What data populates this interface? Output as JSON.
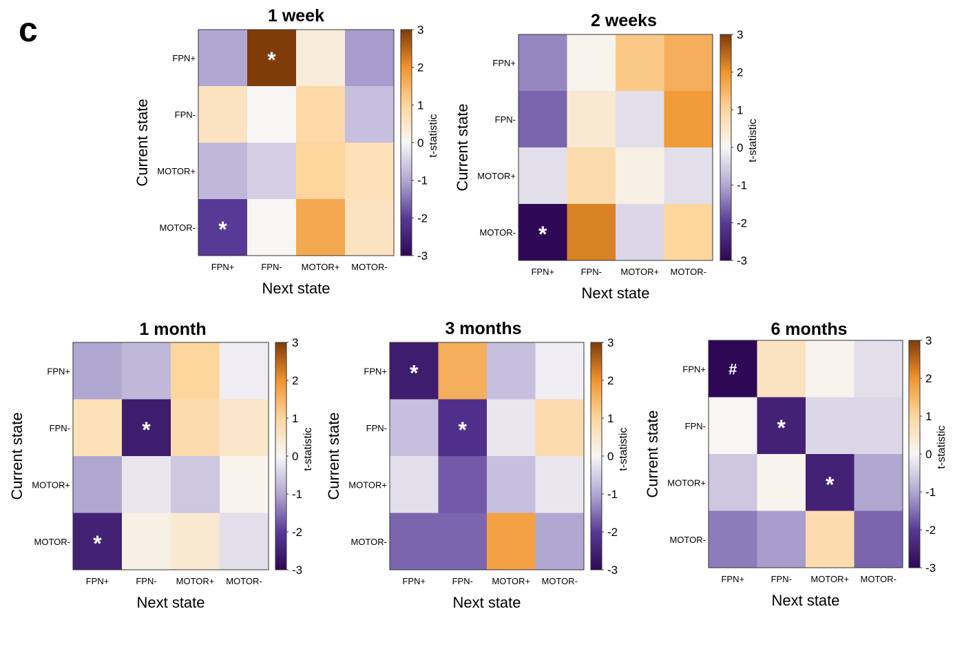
{
  "panel_letter": "c",
  "chart_data": [
    {
      "type": "heatmap",
      "title": "1 week",
      "xlabel": "Next state",
      "ylabel": "Current state",
      "colorbar_label": "t-statistic",
      "colorbar_ticks": [
        "3",
        "2",
        "1",
        "0",
        "-1",
        "-2",
        "-3"
      ],
      "clim": [
        -3,
        3
      ],
      "x_categories": [
        "FPN+",
        "FPN-",
        "MOTOR+",
        "MOTOR-"
      ],
      "y_categories": [
        "FPN+",
        "FPN-",
        "MOTOR+",
        "MOTOR-"
      ],
      "values": [
        [
          -1.0,
          3.0,
          0.3,
          -1.1
        ],
        [
          0.6,
          0.0,
          0.9,
          -0.7
        ],
        [
          -0.8,
          -0.5,
          1.0,
          0.7
        ],
        [
          -2.0,
          0.0,
          1.7,
          0.6
        ]
      ],
      "annotations": [
        [
          "",
          "*",
          "",
          ""
        ],
        [
          "",
          "",
          "",
          ""
        ],
        [
          "",
          "",
          "",
          ""
        ],
        [
          "*",
          "",
          "",
          ""
        ]
      ]
    },
    {
      "type": "heatmap",
      "title": "2 weeks",
      "xlabel": "Next state",
      "ylabel": "Current state",
      "colorbar_label": "t-statistic",
      "colorbar_ticks": [
        "3",
        "2",
        "1",
        "0",
        "-1",
        "-2",
        "-3"
      ],
      "clim": [
        -3,
        3
      ],
      "x_categories": [
        "FPN+",
        "FPN-",
        "MOTOR+",
        "MOTOR-"
      ],
      "y_categories": [
        "FPN+",
        "FPN-",
        "MOTOR+",
        "MOTOR-"
      ],
      "values": [
        [
          -1.3,
          0.1,
          1.2,
          1.6
        ],
        [
          -1.6,
          0.4,
          -0.3,
          1.9
        ],
        [
          -0.3,
          0.8,
          0.2,
          -0.3
        ],
        [
          -3.0,
          2.2,
          -0.4,
          1.0
        ]
      ],
      "annotations": [
        [
          "",
          "",
          "",
          ""
        ],
        [
          "",
          "",
          "",
          ""
        ],
        [
          "",
          "",
          "",
          ""
        ],
        [
          "*",
          "",
          "",
          ""
        ]
      ]
    },
    {
      "type": "heatmap",
      "title": "1 month",
      "xlabel": "Next state",
      "ylabel": "Current state",
      "colorbar_label": "t-statistic",
      "colorbar_ticks": [
        "3",
        "2",
        "1",
        "0",
        "-1",
        "-2",
        "-3"
      ],
      "clim": [
        -3,
        3
      ],
      "x_categories": [
        "FPN+",
        "FPN-",
        "MOTOR+",
        "MOTOR-"
      ],
      "y_categories": [
        "FPN+",
        "FPN-",
        "MOTOR+",
        "MOTOR-"
      ],
      "values": [
        [
          -1.0,
          -0.8,
          1.0,
          -0.1
        ],
        [
          0.7,
          -2.6,
          0.8,
          0.5
        ],
        [
          -1.0,
          -0.2,
          -0.6,
          0.1
        ],
        [
          -2.5,
          0.2,
          0.4,
          -0.3
        ]
      ],
      "annotations": [
        [
          "",
          "",
          "",
          ""
        ],
        [
          "",
          "*",
          "",
          ""
        ],
        [
          "",
          "",
          "",
          ""
        ],
        [
          "*",
          "",
          "",
          ""
        ]
      ]
    },
    {
      "type": "heatmap",
      "title": "3 months",
      "xlabel": "Next state",
      "ylabel": "Current state",
      "colorbar_label": "t-statistic",
      "colorbar_ticks": [
        "3",
        "2",
        "1",
        "0",
        "-1",
        "-2",
        "-3"
      ],
      "clim": [
        -3,
        3
      ],
      "x_categories": [
        "FPN+",
        "FPN-",
        "MOTOR+",
        "MOTOR-"
      ],
      "y_categories": [
        "FPN+",
        "FPN-",
        "MOTOR+",
        "MOTOR-"
      ],
      "values": [
        [
          -2.6,
          1.6,
          -0.7,
          -0.1
        ],
        [
          -0.7,
          -2.2,
          -0.2,
          0.8
        ],
        [
          -0.3,
          -1.7,
          -0.7,
          -0.2
        ],
        [
          -1.6,
          -1.6,
          1.8,
          -1.0
        ]
      ],
      "annotations": [
        [
          "*",
          "",
          "",
          ""
        ],
        [
          "",
          "*",
          "",
          ""
        ],
        [
          "",
          "",
          "",
          ""
        ],
        [
          "",
          "",
          "",
          ""
        ]
      ]
    },
    {
      "type": "heatmap",
      "title": "6 months",
      "xlabel": "Next state",
      "ylabel": "Current state",
      "colorbar_label": "t-statistic",
      "colorbar_ticks": [
        "3",
        "2",
        "1",
        "0",
        "-1",
        "-2",
        "-3"
      ],
      "clim": [
        -3,
        3
      ],
      "x_categories": [
        "FPN+",
        "FPN-",
        "MOTOR+",
        "MOTOR-"
      ],
      "y_categories": [
        "FPN+",
        "FPN-",
        "MOTOR+",
        "MOTOR-"
      ],
      "values": [
        [
          -3.0,
          0.6,
          0.1,
          -0.3
        ],
        [
          0.0,
          -2.5,
          -0.4,
          -0.4
        ],
        [
          -0.6,
          0.1,
          -2.5,
          -1.0
        ],
        [
          -1.4,
          -1.1,
          0.8,
          -1.6
        ]
      ],
      "annotations": [
        [
          "#",
          "",
          "",
          ""
        ],
        [
          "",
          "*",
          "",
          ""
        ],
        [
          "",
          "",
          "*",
          ""
        ],
        [
          "",
          "",
          "",
          ""
        ]
      ]
    }
  ]
}
